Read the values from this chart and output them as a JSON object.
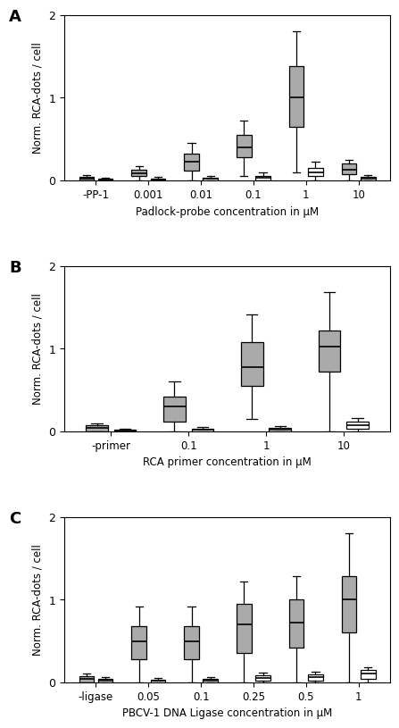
{
  "panel_A": {
    "label": "A",
    "xlabel": "Padlock-probe concentration in μM",
    "ylabel": "Norm. RCA-dots / cell",
    "ylim": [
      0,
      2
    ],
    "yticks": [
      0,
      1,
      2
    ],
    "categories": [
      "-PP-1",
      "0.001",
      "0.01",
      "0.1",
      "1",
      "10"
    ],
    "gray_boxes": [
      {
        "whislo": 0.0,
        "q1": 0.0,
        "med": 0.02,
        "q3": 0.04,
        "whishi": 0.06
      },
      {
        "whislo": 0.0,
        "q1": 0.05,
        "med": 0.08,
        "q3": 0.13,
        "whishi": 0.17
      },
      {
        "whislo": 0.0,
        "q1": 0.12,
        "med": 0.22,
        "q3": 0.32,
        "whishi": 0.45
      },
      {
        "whislo": 0.05,
        "q1": 0.28,
        "med": 0.4,
        "q3": 0.55,
        "whishi": 0.72
      },
      {
        "whislo": 0.1,
        "q1": 0.65,
        "med": 1.0,
        "q3": 1.38,
        "whishi": 1.8
      },
      {
        "whislo": 0.0,
        "q1": 0.07,
        "med": 0.13,
        "q3": 0.2,
        "whishi": 0.25
      }
    ],
    "white_boxes": [
      {
        "whislo": 0.0,
        "q1": 0.0,
        "med": 0.01,
        "q3": 0.02,
        "whishi": 0.03
      },
      {
        "whislo": 0.0,
        "q1": 0.0,
        "med": 0.01,
        "q3": 0.02,
        "whishi": 0.04
      },
      {
        "whislo": 0.0,
        "q1": 0.0,
        "med": 0.02,
        "q3": 0.03,
        "whishi": 0.05
      },
      {
        "whislo": 0.0,
        "q1": 0.0,
        "med": 0.03,
        "q3": 0.05,
        "whishi": 0.1
      },
      {
        "whislo": 0.0,
        "q1": 0.05,
        "med": 0.1,
        "q3": 0.15,
        "whishi": 0.22
      },
      {
        "whislo": 0.0,
        "q1": 0.0,
        "med": 0.02,
        "q3": 0.04,
        "whishi": 0.06
      }
    ]
  },
  "panel_B": {
    "label": "B",
    "xlabel": "RCA primer concentration in μM",
    "ylabel": "Norm. RCA-dots / cell",
    "ylim": [
      0,
      2
    ],
    "yticks": [
      0,
      1,
      2
    ],
    "categories": [
      "-primer",
      "0.1",
      "1",
      "10"
    ],
    "gray_boxes": [
      {
        "whislo": 0.0,
        "q1": 0.0,
        "med": 0.04,
        "q3": 0.07,
        "whishi": 0.09
      },
      {
        "whislo": 0.0,
        "q1": 0.12,
        "med": 0.3,
        "q3": 0.42,
        "whishi": 0.6
      },
      {
        "whislo": 0.15,
        "q1": 0.55,
        "med": 0.78,
        "q3": 1.08,
        "whishi": 1.42
      },
      {
        "whislo": 0.0,
        "q1": 0.72,
        "med": 1.02,
        "q3": 1.22,
        "whishi": 1.68
      }
    ],
    "white_boxes": [
      {
        "whislo": 0.0,
        "q1": 0.0,
        "med": 0.01,
        "q3": 0.02,
        "whishi": 0.03
      },
      {
        "whislo": 0.0,
        "q1": 0.0,
        "med": 0.02,
        "q3": 0.03,
        "whishi": 0.05
      },
      {
        "whislo": 0.0,
        "q1": 0.0,
        "med": 0.02,
        "q3": 0.04,
        "whishi": 0.06
      },
      {
        "whislo": 0.0,
        "q1": 0.03,
        "med": 0.07,
        "q3": 0.12,
        "whishi": 0.16
      }
    ]
  },
  "panel_C": {
    "label": "C",
    "xlabel": "PBCV-1 DNA Ligase concentration in μM",
    "ylabel": "Norm. RCA-dots / cell",
    "ylim": [
      0,
      2
    ],
    "yticks": [
      0,
      1,
      2
    ],
    "categories": [
      "-ligase",
      "0.05",
      "0.1",
      "0.25",
      "0.5",
      "1"
    ],
    "gray_boxes": [
      {
        "whislo": 0.0,
        "q1": 0.0,
        "med": 0.04,
        "q3": 0.07,
        "whishi": 0.1
      },
      {
        "whislo": 0.0,
        "q1": 0.28,
        "med": 0.5,
        "q3": 0.68,
        "whishi": 0.92
      },
      {
        "whislo": 0.0,
        "q1": 0.28,
        "med": 0.5,
        "q3": 0.68,
        "whishi": 0.92
      },
      {
        "whislo": 0.0,
        "q1": 0.35,
        "med": 0.7,
        "q3": 0.95,
        "whishi": 1.22
      },
      {
        "whislo": 0.0,
        "q1": 0.42,
        "med": 0.72,
        "q3": 1.0,
        "whishi": 1.28
      },
      {
        "whislo": 0.0,
        "q1": 0.6,
        "med": 1.0,
        "q3": 1.28,
        "whishi": 1.8
      }
    ],
    "white_boxes": [
      {
        "whislo": 0.0,
        "q1": 0.0,
        "med": 0.02,
        "q3": 0.04,
        "whishi": 0.06
      },
      {
        "whislo": 0.0,
        "q1": 0.0,
        "med": 0.02,
        "q3": 0.03,
        "whishi": 0.05
      },
      {
        "whislo": 0.0,
        "q1": 0.0,
        "med": 0.02,
        "q3": 0.04,
        "whishi": 0.06
      },
      {
        "whislo": 0.0,
        "q1": 0.02,
        "med": 0.05,
        "q3": 0.08,
        "whishi": 0.12
      },
      {
        "whislo": 0.0,
        "q1": 0.02,
        "med": 0.06,
        "q3": 0.09,
        "whishi": 0.13
      },
      {
        "whislo": 0.0,
        "q1": 0.04,
        "med": 0.1,
        "q3": 0.15,
        "whishi": 0.18
      }
    ]
  },
  "gray_color": "#aaaaaa",
  "white_color": "white"
}
